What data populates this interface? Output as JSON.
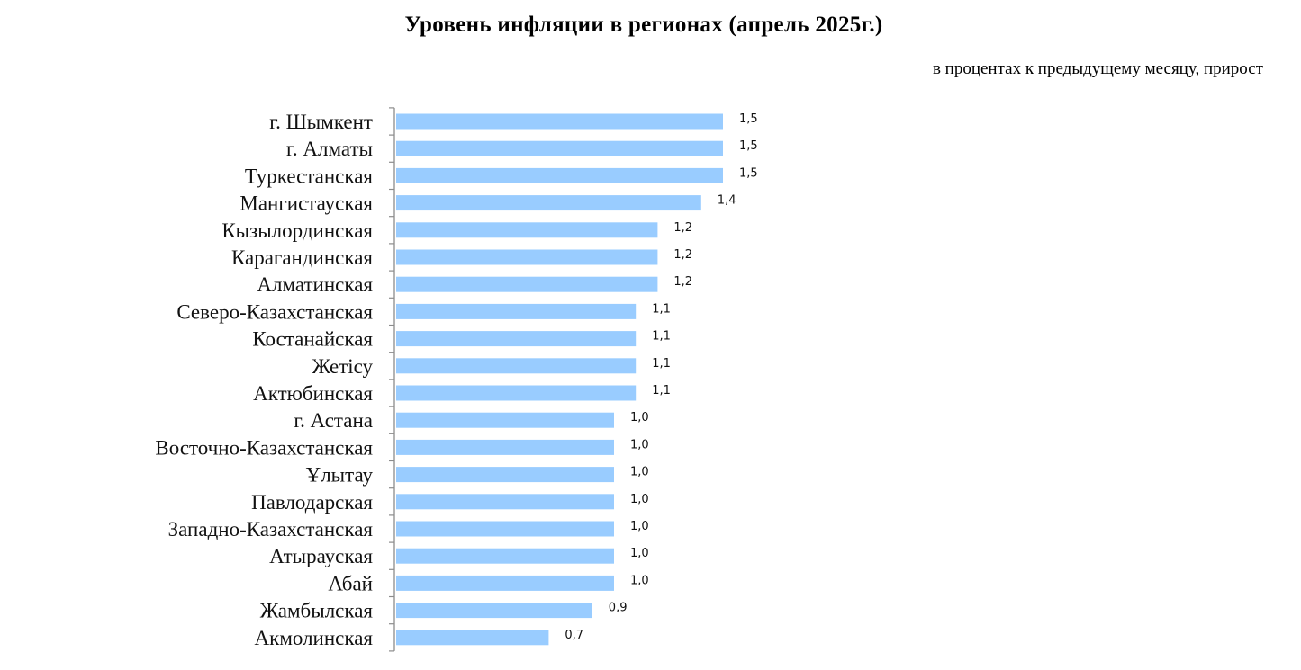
{
  "header": {
    "title": "Уровень инфляции в регионах (апрель 2025г.)",
    "subtitle": "в процентах к предыдущему месяцу, прирост"
  },
  "colors": {
    "bar": "#99CCFF",
    "axis": "#8C8C8C",
    "text": "#111111"
  },
  "chart_data": {
    "type": "bar",
    "orientation": "horizontal",
    "title": "Уровень инфляции в регионах (апрель 2025г.)",
    "subtitle": "в процентах к предыдущему месяцу, прирост",
    "xlabel": "",
    "ylabel": "",
    "grid": false,
    "legend": "none",
    "xlim": [
      0,
      1.5
    ],
    "categories": [
      "г. Шымкент",
      "г. Алматы",
      "Туркестанская",
      "Мангистауская",
      "Кызылординская",
      "Карагандинская",
      "Алматинская",
      "Северо-Казахстанская",
      "Костанайская",
      "Жетiсу",
      "Актюбинская",
      "г. Астана",
      "Восточно-Казахстанская",
      "Ұлытау",
      "Павлодарская",
      "Западно-Казахстанская",
      "Атырауская",
      "Абай",
      "Жамбылская",
      "Акмолинская"
    ],
    "values": [
      1.5,
      1.5,
      1.5,
      1.4,
      1.2,
      1.2,
      1.2,
      1.1,
      1.1,
      1.1,
      1.1,
      1.0,
      1.0,
      1.0,
      1.0,
      1.0,
      1.0,
      1.0,
      0.9,
      0.7
    ],
    "value_labels": [
      "1,5",
      "1,5",
      "1,5",
      "1,4",
      "1,2",
      "1,2",
      "1,2",
      "1,1",
      "1,1",
      "1,1",
      "1,1",
      "1,0",
      "1,0",
      "1,0",
      "1,0",
      "1,0",
      "1,0",
      "1,0",
      "0,9",
      "0,7"
    ]
  }
}
